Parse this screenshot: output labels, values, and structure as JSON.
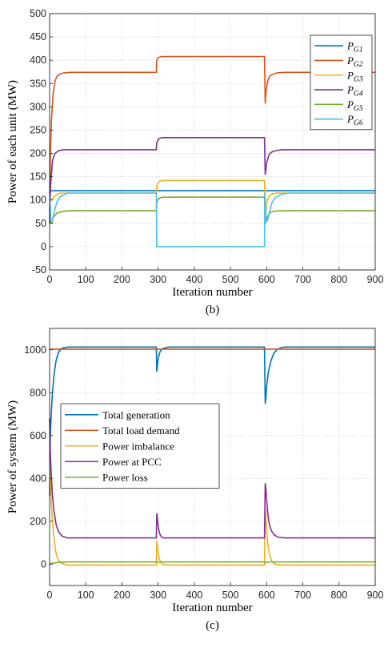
{
  "chart_data": [
    {
      "type": "line",
      "panel_label": "(b)",
      "xlabel": "Iteration number",
      "ylabel": "Power of each unit (MW)",
      "xlim": [
        0,
        900
      ],
      "ylim": [
        -50,
        500
      ],
      "xticks": [
        0,
        100,
        200,
        300,
        400,
        500,
        600,
        700,
        800,
        900
      ],
      "yticks": [
        -50,
        0,
        50,
        100,
        150,
        200,
        250,
        300,
        350,
        400,
        450,
        500
      ],
      "grid": true,
      "legend_position": "top-right",
      "series": [
        {
          "name": "P",
          "sub": "G1",
          "color": "#0072BD",
          "x": [
            0,
            1,
            295,
            296,
            297,
            594,
            595,
            596,
            900
          ],
          "y": [
            115,
            120,
            120,
            120,
            120,
            120,
            120,
            120,
            120
          ]
        },
        {
          "name": "P",
          "sub": "G2",
          "color": "#D95319",
          "x": [
            0,
            2,
            5,
            10,
            15,
            20,
            30,
            40,
            60,
            295,
            296,
            300,
            305,
            310,
            320,
            330,
            594,
            596,
            598,
            602,
            606,
            610,
            620,
            630,
            650,
            900
          ],
          "y": [
            50,
            190,
            270,
            330,
            355,
            365,
            371,
            373,
            374,
            374,
            400,
            405,
            407,
            408,
            408,
            408,
            408,
            308,
            330,
            352,
            362,
            367,
            371,
            373,
            374,
            374
          ]
        },
        {
          "name": "P",
          "sub": "G3",
          "color": "#EDB120",
          "x": [
            0,
            3,
            6,
            12,
            20,
            30,
            295,
            296,
            300,
            306,
            312,
            330,
            594,
            596,
            600,
            606,
            612,
            620,
            630,
            650,
            900
          ],
          "y": [
            110,
            100,
            100,
            107,
            112,
            115,
            115,
            130,
            138,
            141,
            142,
            142,
            142,
            57,
            95,
            107,
            112,
            114,
            115,
            115,
            115
          ]
        },
        {
          "name": "P",
          "sub": "G4",
          "color": "#7E2F8E",
          "x": [
            0,
            3,
            8,
            15,
            25,
            40,
            295,
            296,
            300,
            306,
            315,
            330,
            594,
            596,
            600,
            606,
            612,
            620,
            640,
            900
          ],
          "y": [
            75,
            135,
            185,
            200,
            206,
            208,
            208,
            222,
            230,
            233,
            234,
            234,
            234,
            155,
            180,
            196,
            202,
            205,
            208,
            208
          ]
        },
        {
          "name": "P",
          "sub": "G5",
          "color": "#77AC30",
          "x": [
            0,
            3,
            6,
            10,
            20,
            40,
            60,
            295,
            296,
            300,
            306,
            312,
            330,
            594,
            596,
            600,
            606,
            612,
            620,
            640,
            900
          ],
          "y": [
            60,
            50,
            50,
            62,
            72,
            76,
            77,
            77,
            95,
            102,
            105,
            106,
            106,
            106,
            50,
            60,
            70,
            74,
            76,
            77,
            77
          ]
        },
        {
          "name": "P",
          "sub": "G6",
          "color": "#4DBEEE",
          "x": [
            0,
            4,
            8,
            12,
            20,
            30,
            50,
            295,
            296,
            594,
            595,
            598,
            602,
            608,
            615,
            625,
            640,
            660,
            900
          ],
          "y": [
            115,
            55,
            55,
            72,
            95,
            108,
            115,
            115,
            0,
            0,
            115,
            55,
            55,
            75,
            95,
            106,
            112,
            115,
            115
          ]
        }
      ]
    },
    {
      "type": "line",
      "panel_label": "(c)",
      "xlabel": "Iteration number",
      "ylabel": "Power of system (MW)",
      "xlim": [
        0,
        900
      ],
      "ylim": [
        -100,
        1100
      ],
      "xticks": [
        0,
        100,
        200,
        300,
        400,
        500,
        600,
        700,
        800,
        900
      ],
      "yticks": [
        0,
        200,
        400,
        600,
        800,
        1000
      ],
      "grid": true,
      "legend_position": "center-left",
      "series": [
        {
          "name": "Total generation",
          "color": "#0072BD",
          "x": [
            0,
            2,
            5,
            8,
            12,
            18,
            25,
            35,
            50,
            295,
            296,
            297,
            300,
            305,
            310,
            320,
            330,
            594,
            596,
            598,
            600,
            605,
            612,
            620,
            630,
            640,
            650,
            900
          ],
          "y": [
            320,
            600,
            720,
            800,
            880,
            950,
            990,
            1008,
            1013,
            1013,
            900,
            910,
            960,
            990,
            1003,
            1010,
            1013,
            1013,
            750,
            780,
            830,
            900,
            950,
            985,
            1003,
            1010,
            1013,
            1013
          ]
        },
        {
          "name": "Total load demand",
          "color": "#D95319",
          "x": [
            0,
            900
          ],
          "y": [
            1003,
            1003
          ]
        },
        {
          "name": "Power imbalance",
          "color": "#EDB120",
          "x": [
            0,
            2,
            5,
            8,
            12,
            18,
            25,
            35,
            50,
            295,
            296,
            297,
            300,
            303,
            306,
            310,
            315,
            330,
            594,
            596,
            598,
            600,
            603,
            606,
            610,
            615,
            620,
            630,
            650,
            900
          ],
          "y": [
            680,
            400,
            280,
            200,
            120,
            50,
            15,
            3,
            -5,
            -5,
            105,
            95,
            55,
            28,
            12,
            3,
            -3,
            -5,
            -5,
            250,
            220,
            160,
            100,
            60,
            30,
            12,
            3,
            -3,
            -5,
            -5
          ]
        },
        {
          "name": "Power at PCC",
          "color": "#7E2F8E",
          "x": [
            0,
            2,
            5,
            8,
            12,
            18,
            25,
            35,
            50,
            295,
            296,
            297,
            300,
            303,
            306,
            310,
            315,
            330,
            594,
            596,
            598,
            600,
            603,
            606,
            610,
            615,
            620,
            630,
            650,
            900
          ],
          "y": [
            680,
            520,
            400,
            320,
            250,
            185,
            150,
            130,
            122,
            122,
            235,
            225,
            180,
            150,
            135,
            126,
            122,
            122,
            122,
            375,
            350,
            300,
            240,
            200,
            170,
            150,
            138,
            126,
            122,
            122
          ]
        },
        {
          "name": "Power loss",
          "color": "#77AC30",
          "x": [
            0,
            10,
            25,
            50,
            295,
            296,
            310,
            594,
            596,
            600,
            610,
            900
          ],
          "y": [
            0,
            5,
            8,
            10,
            10,
            9,
            10,
            10,
            6,
            8,
            10,
            10
          ]
        }
      ]
    }
  ]
}
